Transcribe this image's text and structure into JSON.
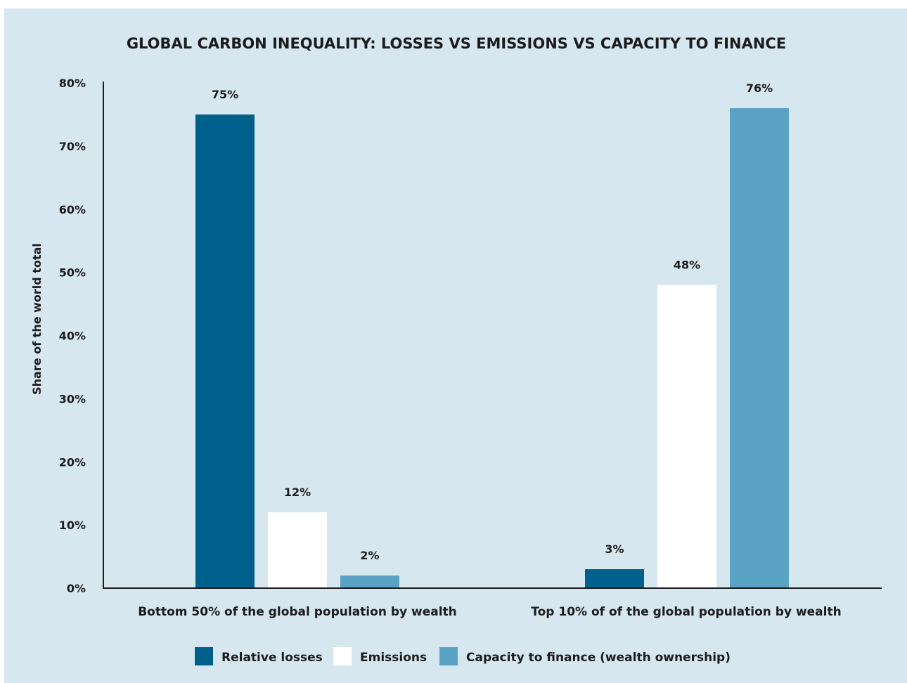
{
  "chart_data": {
    "type": "bar",
    "title": "GLOBAL CARBON INEQUALITY: LOSSES VS EMISSIONS VS CAPACITY TO FINANCE",
    "ylabel": "Share of the world total",
    "xlabel": "",
    "ylim": [
      0,
      80
    ],
    "yticks": [
      "0%",
      "10%",
      "20%",
      "30%",
      "40%",
      "50%",
      "60%",
      "70%",
      "80%"
    ],
    "categories": [
      "Bottom 50% of the global population by wealth",
      "Top 10% of of the global population by wealth"
    ],
    "series": [
      {
        "name": "Relative losses",
        "values": [
          75,
          3
        ],
        "labels": [
          "75%",
          "3%"
        ],
        "color": "#00608c"
      },
      {
        "name": "Emissions",
        "values": [
          12,
          48
        ],
        "labels": [
          "12%",
          "48%"
        ],
        "color": "#ffffff"
      },
      {
        "name": "Capacity to finance (wealth ownership)",
        "values": [
          2,
          76
        ],
        "labels": [
          "2%",
          "76%"
        ],
        "color": "#5aa3c4"
      }
    ],
    "grid": false,
    "legend_position": "bottom"
  }
}
